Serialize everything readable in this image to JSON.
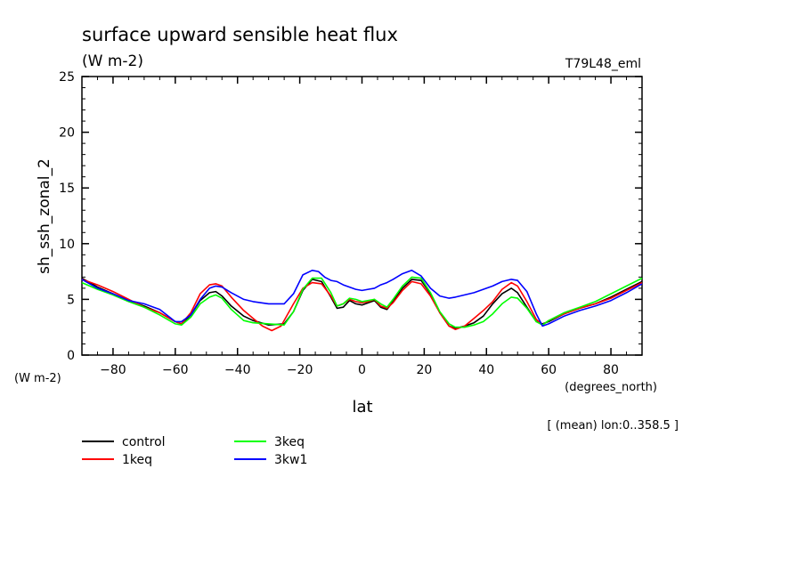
{
  "chart_data": {
    "type": "line",
    "title": "surface upward sensible heat flux",
    "units": "(W m-2)",
    "experiment": "T79L48_eml",
    "ylabel": "sh_ssh_zonal_2",
    "ylabel_units": "(W m-2)",
    "xlabel": "lat",
    "xlabel_units": "(degrees_north)",
    "mean_note": "[ (mean) lon:0..358.5 ]",
    "xlim": [
      -90,
      90
    ],
    "ylim": [
      0,
      25
    ],
    "xticks": [
      -80,
      -60,
      -40,
      -20,
      0,
      20,
      40,
      60,
      80
    ],
    "yticks": [
      0,
      5,
      10,
      15,
      20,
      25
    ],
    "grid": false,
    "legend_position": "bottom-left",
    "series": [
      {
        "name": "control",
        "color": "#000000",
        "x": [
          -90,
          -85,
          -80,
          -75,
          -70,
          -65,
          -60,
          -58,
          -55,
          -52,
          -49,
          -47,
          -45,
          -42,
          -38,
          -35,
          -30,
          -25,
          -22,
          -19,
          -16,
          -13,
          -10,
          -8,
          -6,
          -4,
          -2,
          0,
          2,
          4,
          6,
          8,
          10,
          13,
          16,
          19,
          22,
          25,
          28,
          30,
          33,
          36,
          39,
          42,
          45,
          48,
          50,
          53,
          56,
          58,
          60,
          65,
          70,
          75,
          80,
          85,
          90
        ],
        "y": [
          6.9,
          6.1,
          5.5,
          4.9,
          4.4,
          3.8,
          3.0,
          2.8,
          3.6,
          4.9,
          5.6,
          5.7,
          5.3,
          4.4,
          3.5,
          3.1,
          2.7,
          2.8,
          3.9,
          5.8,
          6.8,
          6.6,
          5.2,
          4.2,
          4.3,
          4.9,
          4.6,
          4.5,
          4.7,
          4.9,
          4.3,
          4.1,
          4.8,
          6.0,
          6.8,
          6.7,
          5.5,
          3.8,
          2.6,
          2.4,
          2.6,
          2.9,
          3.5,
          4.6,
          5.5,
          6.0,
          5.6,
          4.3,
          3.0,
          2.8,
          3.0,
          3.7,
          4.2,
          4.6,
          5.2,
          5.9,
          6.6
        ]
      },
      {
        "name": "1keq",
        "color": "#ff0000",
        "x": [
          -90,
          -85,
          -80,
          -75,
          -70,
          -65,
          -60,
          -58,
          -55,
          -52,
          -49,
          -47,
          -45,
          -42,
          -38,
          -35,
          -32,
          -29,
          -26,
          -22,
          -19,
          -16,
          -13,
          -10,
          -8,
          -6,
          -4,
          -2,
          0,
          2,
          4,
          6,
          8,
          10,
          13,
          16,
          19,
          22,
          25,
          28,
          30,
          33,
          36,
          39,
          42,
          45,
          48,
          50,
          53,
          56,
          58,
          60,
          65,
          70,
          75,
          80,
          85,
          90
        ],
        "y": [
          6.8,
          6.3,
          5.7,
          5.0,
          4.3,
          3.8,
          3.0,
          2.8,
          3.8,
          5.5,
          6.3,
          6.4,
          6.2,
          5.2,
          4.0,
          3.3,
          2.6,
          2.2,
          2.6,
          4.6,
          6.0,
          6.5,
          6.4,
          5.3,
          4.4,
          4.6,
          5.0,
          4.8,
          4.7,
          4.8,
          5.0,
          4.4,
          4.2,
          4.7,
          5.8,
          6.6,
          6.4,
          5.3,
          3.8,
          2.6,
          2.3,
          2.6,
          3.3,
          4.0,
          4.8,
          5.9,
          6.5,
          6.2,
          4.8,
          3.2,
          2.7,
          3.1,
          3.7,
          4.2,
          4.6,
          5.1,
          5.8,
          6.5
        ]
      },
      {
        "name": "3keq",
        "color": "#00ff00",
        "x": [
          -90,
          -85,
          -80,
          -75,
          -70,
          -65,
          -60,
          -58,
          -55,
          -52,
          -49,
          -47,
          -45,
          -42,
          -38,
          -35,
          -30,
          -25,
          -22,
          -19,
          -16,
          -13,
          -10,
          -8,
          -6,
          -4,
          -2,
          0,
          2,
          4,
          6,
          8,
          10,
          13,
          16,
          19,
          22,
          25,
          28,
          30,
          33,
          36,
          39,
          42,
          45,
          48,
          50,
          53,
          56,
          58,
          60,
          65,
          70,
          75,
          80,
          85,
          90
        ],
        "y": [
          6.5,
          5.9,
          5.4,
          4.8,
          4.3,
          3.6,
          2.8,
          2.7,
          3.4,
          4.6,
          5.2,
          5.4,
          5.1,
          4.1,
          3.1,
          2.9,
          2.8,
          2.7,
          3.9,
          5.9,
          6.9,
          6.9,
          5.6,
          4.4,
          4.6,
          5.1,
          5.0,
          4.8,
          4.9,
          5.0,
          4.6,
          4.3,
          5.0,
          6.2,
          7.0,
          6.9,
          5.6,
          3.9,
          2.8,
          2.5,
          2.5,
          2.7,
          3.0,
          3.7,
          4.6,
          5.2,
          5.1,
          4.2,
          3.0,
          2.7,
          3.1,
          3.8,
          4.3,
          4.8,
          5.5,
          6.2,
          6.9
        ]
      },
      {
        "name": "3kw1",
        "color": "#0000ff",
        "x": [
          -90,
          -85,
          -80,
          -75,
          -70,
          -65,
          -60,
          -58,
          -55,
          -52,
          -49,
          -47,
          -45,
          -42,
          -38,
          -35,
          -30,
          -25,
          -22,
          -19,
          -16,
          -14,
          -12,
          -10,
          -8,
          -6,
          -4,
          -2,
          0,
          2,
          4,
          6,
          8,
          10,
          13,
          16,
          19,
          22,
          25,
          28,
          30,
          33,
          36,
          39,
          42,
          45,
          48,
          50,
          53,
          56,
          58,
          60,
          65,
          70,
          75,
          80,
          85,
          90
        ],
        "y": [
          6.8,
          6.0,
          5.5,
          4.9,
          4.6,
          4.1,
          3.0,
          3.0,
          3.6,
          5.0,
          6.0,
          6.2,
          6.1,
          5.6,
          5.0,
          4.8,
          4.6,
          4.6,
          5.5,
          7.2,
          7.6,
          7.5,
          7.0,
          6.7,
          6.6,
          6.3,
          6.1,
          5.9,
          5.8,
          5.9,
          6.0,
          6.3,
          6.5,
          6.8,
          7.3,
          7.6,
          7.1,
          6.0,
          5.3,
          5.1,
          5.2,
          5.4,
          5.6,
          5.9,
          6.2,
          6.6,
          6.8,
          6.7,
          5.7,
          3.7,
          2.6,
          2.8,
          3.5,
          4.0,
          4.4,
          4.9,
          5.6,
          6.4
        ]
      }
    ]
  }
}
